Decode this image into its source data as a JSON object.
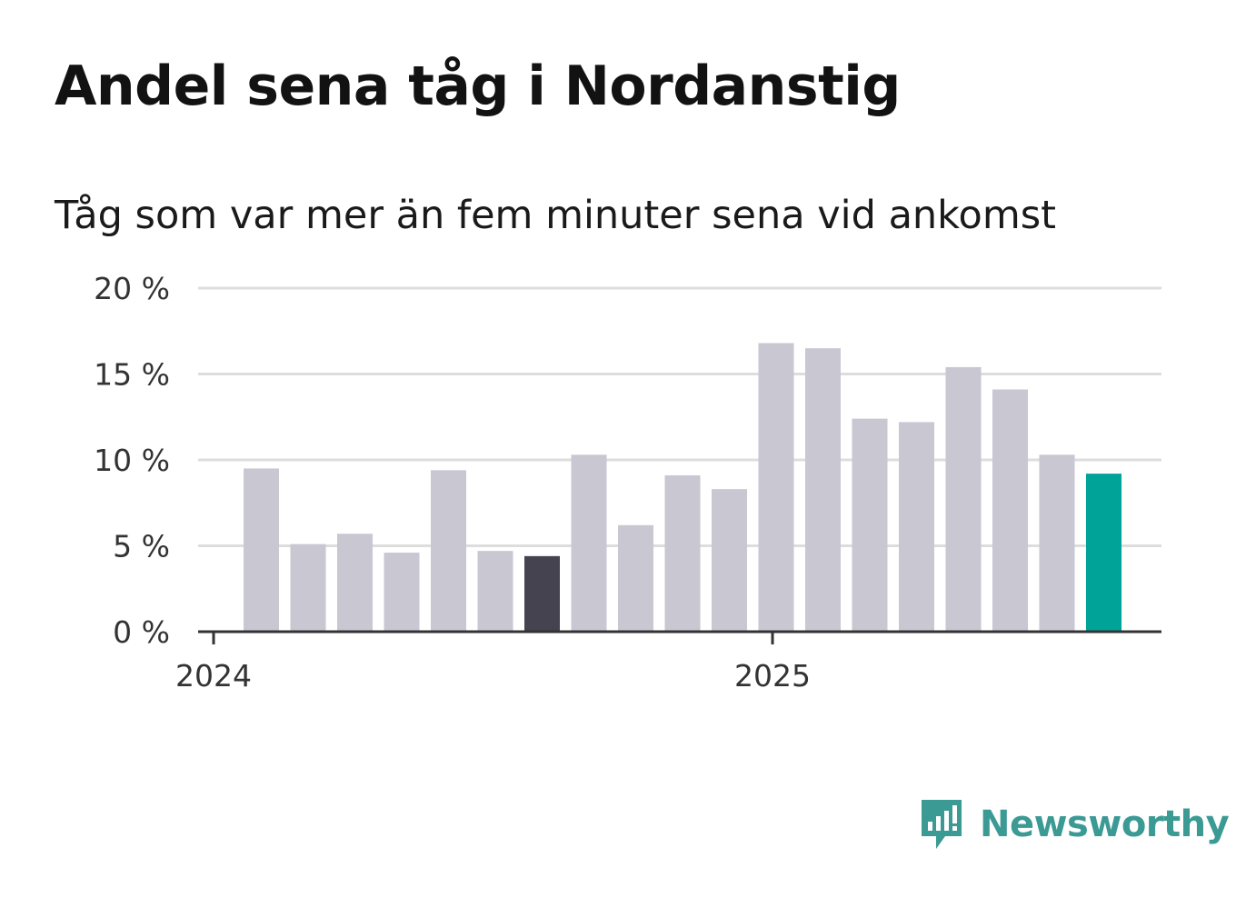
{
  "header": {
    "title": "Andel sena tåg i Nordanstig",
    "subtitle": "Tåg som var mer än fem minuter sena vid ankomst"
  },
  "chart_data": {
    "type": "bar",
    "title": "Andel sena tåg i Nordanstig",
    "subtitle": "Tåg som var mer än fem minuter sena vid ankomst",
    "xlabel": "",
    "ylabel": "",
    "x_tick_labels": [
      "2024",
      "2025"
    ],
    "y_tick_labels": [
      "0 %",
      "5 %",
      "10 %",
      "15 %",
      "20 %"
    ],
    "y_ticks": [
      0,
      5,
      10,
      15,
      20
    ],
    "ylim": [
      0,
      20
    ],
    "grid": true,
    "legend": "none",
    "series": [
      {
        "values": [
          9.5,
          5.1,
          5.7,
          4.6,
          9.4,
          4.7,
          4.4,
          10.3,
          6.2,
          9.1,
          8.3,
          16.8,
          16.5,
          12.4,
          12.2,
          15.4,
          14.1,
          10.3,
          9.2
        ]
      }
    ],
    "colors": {
      "default": "#c8c7d2",
      "dark": "#44434f",
      "accent": "#00a398",
      "grid": "#dddddd",
      "axis": "#333333"
    },
    "dark_index": 6,
    "accent_index": 18
  },
  "branding": {
    "logo_text": "Newsworthy",
    "logo_icon": "newsworthy-bars-icon",
    "logo_color": "#3b9a94"
  }
}
